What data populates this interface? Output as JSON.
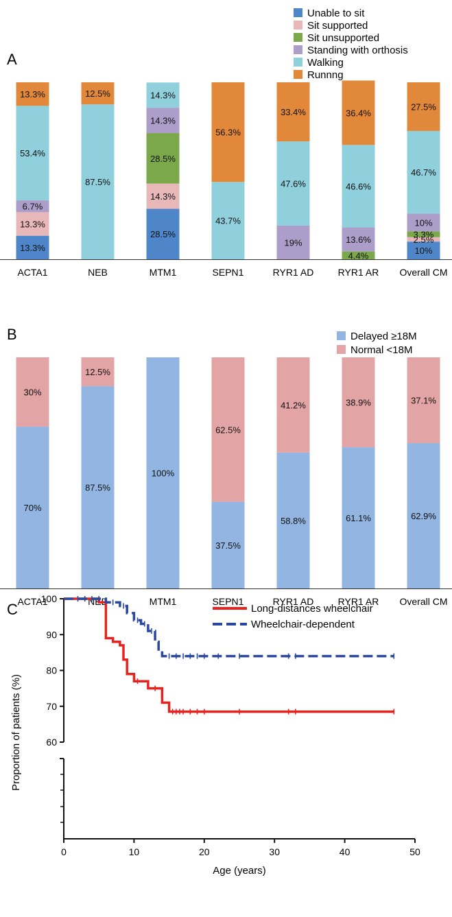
{
  "chart_data": [
    {
      "panel": "A",
      "type": "bar",
      "stacked": true,
      "categories": [
        "ACTA1",
        "NEB",
        "MTM1",
        "SEPN1",
        "RYR1 AD",
        "RYR1 AR",
        "Overall CM"
      ],
      "series": [
        {
          "name": "Unable to sit",
          "color": "#4f86c9",
          "values": [
            13.3,
            0,
            28.5,
            0,
            0,
            0,
            10
          ],
          "labels": [
            "13.3%",
            "",
            "28.5%",
            "",
            "",
            "",
            "10%"
          ]
        },
        {
          "name": "Sit supported",
          "color": "#e8b7b8",
          "values": [
            13.3,
            0,
            14.3,
            0,
            0,
            0,
            2.5
          ],
          "labels": [
            "13.3%",
            "",
            "14.3%",
            "",
            "",
            "",
            "2.5%"
          ]
        },
        {
          "name": "Sit unsupported",
          "color": "#7aa84b",
          "values": [
            0,
            0,
            28.5,
            0,
            0,
            4.4,
            3.3
          ],
          "labels": [
            "",
            "",
            "28.5%",
            "",
            "",
            "4.4%",
            "3.3%"
          ]
        },
        {
          "name": "Standing with orthosis",
          "color": "#ad9dc9",
          "values": [
            6.7,
            0,
            14.3,
            0,
            19,
            13.6,
            10
          ],
          "labels": [
            "6.7%",
            "",
            "14.3%",
            "",
            "19%",
            "13.6%",
            "10%"
          ]
        },
        {
          "name": "Walking",
          "color": "#8fd0dc",
          "values": [
            53.4,
            87.5,
            14.3,
            43.7,
            47.6,
            46.6,
            46.7
          ],
          "labels": [
            "53.4%",
            "87.5%",
            "14.3%",
            "43.7%",
            "47.6%",
            "46.6%",
            "46.7%"
          ]
        },
        {
          "name": "Runnng",
          "color": "#e2883a",
          "values": [
            13.3,
            12.5,
            0,
            56.3,
            33.4,
            36.4,
            27.5
          ],
          "labels": [
            "13.3%",
            "12.5%",
            "",
            "56.3%",
            "33.4%",
            "36.4%",
            "27.5%"
          ]
        }
      ],
      "ylim": [
        0,
        100
      ],
      "legend": "top-right"
    },
    {
      "panel": "B",
      "type": "bar",
      "stacked": true,
      "categories": [
        "ACTA1",
        "NEB",
        "MTM1",
        "SEPN1",
        "RYR1 AD",
        "RYR1 AR",
        "Overall CM"
      ],
      "series": [
        {
          "name": "Delayed ≥18M",
          "color": "#93b5e2",
          "values": [
            70,
            87.5,
            100,
            37.5,
            58.8,
            61.1,
            62.9
          ],
          "labels": [
            "70%",
            "87.5%",
            "100%",
            "37.5%",
            "58.8%",
            "61.1%",
            "62.9%"
          ]
        },
        {
          "name": "Normal <18M",
          "color": "#e3a4a6",
          "values": [
            30,
            12.5,
            0,
            62.5,
            41.2,
            38.9,
            37.1
          ],
          "labels": [
            "30%",
            "12.5%",
            "",
            "62.5%",
            "41.2%",
            "38.9%",
            "37.1%"
          ]
        }
      ],
      "ylim": [
        0,
        100
      ],
      "legend": "top-right"
    },
    {
      "panel": "C",
      "type": "line",
      "step": true,
      "xlabel": "Age (years)",
      "ylabel": "Proportion of patients (%)",
      "xlim": [
        0,
        50
      ],
      "ylim": [
        60,
        100
      ],
      "axis_break": true,
      "x_ticks": [
        "0",
        "10",
        "20",
        "30",
        "40",
        "50"
      ],
      "y_ticks": [
        "60",
        "70",
        "80",
        "90",
        "100"
      ],
      "legend": "top-right",
      "series": [
        {
          "name": "Long-distances wheelchair",
          "color": "#e8231f",
          "dash": "solid",
          "points": [
            [
              0,
              100
            ],
            [
              5.0,
              100
            ],
            [
              5.0,
              99
            ],
            [
              6.0,
              99
            ],
            [
              6.0,
              93
            ],
            [
              6.0,
              89
            ],
            [
              7.0,
              89
            ],
            [
              7.0,
              88
            ],
            [
              8.0,
              88
            ],
            [
              8.0,
              87
            ],
            [
              8.5,
              87
            ],
            [
              8.5,
              83
            ],
            [
              9.0,
              83
            ],
            [
              9.0,
              79
            ],
            [
              10.0,
              79
            ],
            [
              10.0,
              77
            ],
            [
              12.0,
              77
            ],
            [
              12.0,
              75
            ],
            [
              14.0,
              75
            ],
            [
              14.0,
              71
            ],
            [
              15.0,
              71
            ],
            [
              15.0,
              68.5
            ],
            [
              47,
              68.5
            ]
          ],
          "censored": [
            [
              3,
              100
            ],
            [
              10.5,
              77
            ],
            [
              13,
              75
            ],
            [
              15.5,
              68.5
            ],
            [
              16,
              68.5
            ],
            [
              16.5,
              68.5
            ],
            [
              17,
              68.5
            ],
            [
              18,
              68.5
            ],
            [
              19,
              68.5
            ],
            [
              20,
              68.5
            ],
            [
              25,
              68.5
            ],
            [
              32,
              68.5
            ],
            [
              33,
              68.5
            ],
            [
              47,
              68.5
            ]
          ]
        },
        {
          "name": "Wheelchair-dependent",
          "color": "#2a48a0",
          "dash": "dashed",
          "points": [
            [
              0,
              100
            ],
            [
              6.0,
              100
            ],
            [
              6.0,
              99
            ],
            [
              8.0,
              99
            ],
            [
              8.0,
              98
            ],
            [
              9.0,
              98
            ],
            [
              9.0,
              96
            ],
            [
              10.0,
              96
            ],
            [
              10.0,
              94
            ],
            [
              11.0,
              94
            ],
            [
              11.0,
              93
            ],
            [
              12.0,
              93
            ],
            [
              12.0,
              91
            ],
            [
              13.0,
              91
            ],
            [
              13.0,
              88
            ],
            [
              13.5,
              88
            ],
            [
              13.5,
              85
            ],
            [
              14.0,
              85
            ],
            [
              14.0,
              84
            ],
            [
              47,
              84
            ]
          ],
          "censored": [
            [
              2,
              100
            ],
            [
              3,
              100
            ],
            [
              4,
              100
            ],
            [
              5,
              100
            ],
            [
              7,
              99
            ],
            [
              8.5,
              98
            ],
            [
              10.5,
              94
            ],
            [
              11.5,
              93
            ],
            [
              12.5,
              91
            ],
            [
              15,
              84
            ],
            [
              16,
              84
            ],
            [
              17,
              84
            ],
            [
              18,
              84
            ],
            [
              19,
              84
            ],
            [
              20,
              84
            ],
            [
              22,
              84
            ],
            [
              25,
              84
            ],
            [
              32,
              84
            ],
            [
              33,
              84
            ],
            [
              47,
              84
            ]
          ]
        }
      ]
    }
  ],
  "panel_letters": [
    "A",
    "B",
    "C"
  ]
}
